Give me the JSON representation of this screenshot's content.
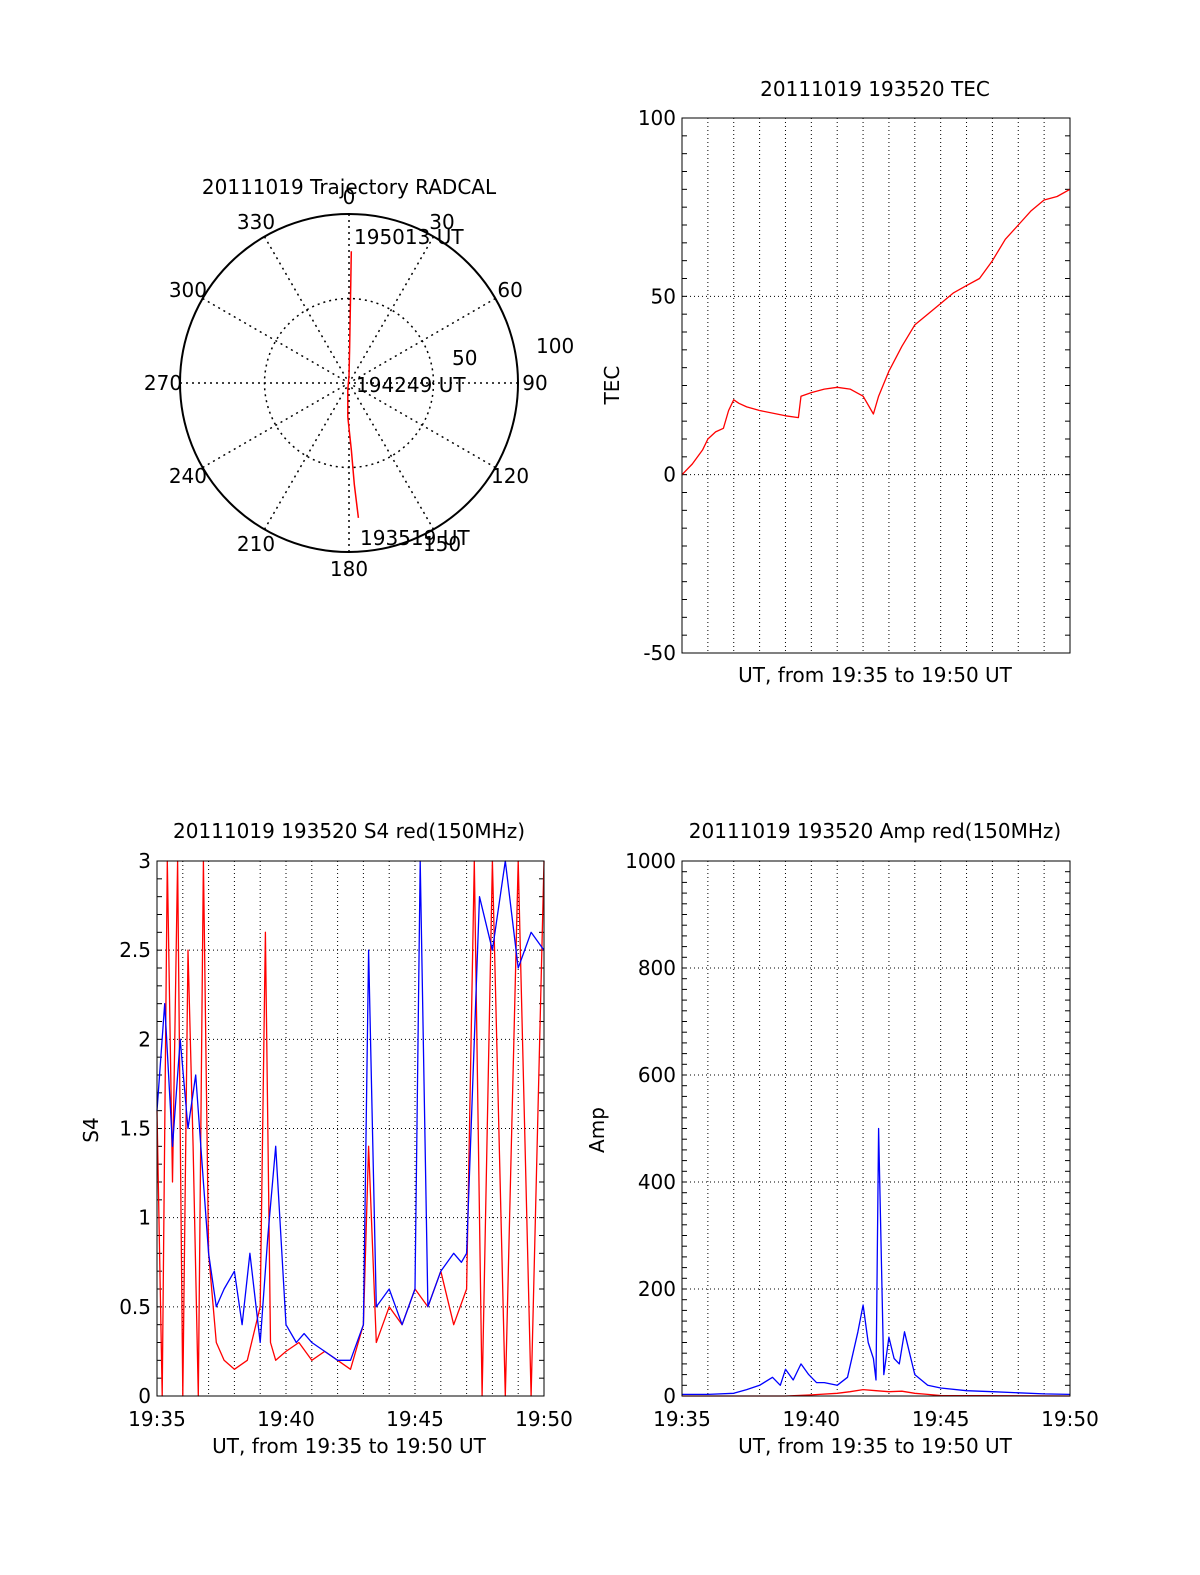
{
  "chart_data": [
    {
      "type": "polar",
      "title": "20111019 Trajectory RADCAL",
      "angle_labels": [
        "0",
        "30",
        "60",
        "90",
        "120",
        "150",
        "180",
        "210",
        "240",
        "270",
        "300",
        "330"
      ],
      "radius_labels": [
        "50",
        "100"
      ],
      "radius_range": [
        0,
        100
      ],
      "start_label": "193519 UT",
      "mid_label": "194249 UT",
      "end_label": "195013 UT",
      "series": [
        {
          "name": "trajectory",
          "color": "#ff0000",
          "points": [
            [
              176,
              80
            ],
            [
              177,
              60
            ],
            [
              178,
              40
            ],
            [
              182,
              20
            ],
            [
              190,
              4
            ],
            [
              0,
              4
            ],
            [
              1,
              20
            ],
            [
              1,
              40
            ],
            [
              1,
              60
            ],
            [
              1,
              78
            ]
          ]
        }
      ]
    },
    {
      "type": "line",
      "title": "20111019 193520 TEC",
      "xlabel": "UT, from 19:35 to 19:50 UT",
      "ylabel": "TEC",
      "xlim": [
        0,
        15
      ],
      "ylim": [
        -50,
        100
      ],
      "yticks": [
        "100",
        "50",
        "0",
        "-50"
      ],
      "grid": true,
      "series": [
        {
          "name": "TEC",
          "color": "#ff0000",
          "x": [
            0,
            0.4,
            0.8,
            1.0,
            1.3,
            1.6,
            1.8,
            2.0,
            2.2,
            2.5,
            3.0,
            4.0,
            4.5,
            4.6,
            5.0,
            5.5,
            6.0,
            6.5,
            7.0,
            7.4,
            7.6,
            8.0,
            8.5,
            9.0,
            9.5,
            10.0,
            10.5,
            11.0,
            11.5,
            12.0,
            12.5,
            13.0,
            13.5,
            14.0,
            14.5,
            15.0
          ],
          "y": [
            0,
            3,
            7,
            10,
            12,
            13,
            18,
            21,
            20,
            19,
            18,
            16.5,
            16,
            22,
            23,
            24,
            24.5,
            24,
            22,
            17,
            22,
            29,
            36,
            42,
            45,
            48,
            51,
            53,
            55,
            60,
            66,
            70,
            74,
            77,
            78,
            80
          ]
        }
      ]
    },
    {
      "type": "line",
      "title": "20111019 193520 S4 red(150MHz)",
      "xlabel": "UT, from 19:35 to 19:50 UT",
      "ylabel": "S4",
      "xlim": [
        0,
        15
      ],
      "ylim": [
        0,
        3
      ],
      "xticks": [
        "19:35",
        "19:40",
        "19:45",
        "19:50"
      ],
      "yticks": [
        "3",
        "2.5",
        "2",
        "1.5",
        "1",
        "0.5",
        "0"
      ],
      "grid": true,
      "series": [
        {
          "name": "red",
          "color": "#ff0000",
          "x": [
            0,
            0.2,
            0.4,
            0.6,
            0.8,
            1.0,
            1.2,
            1.4,
            1.6,
            1.8,
            2.0,
            2.3,
            2.6,
            3.0,
            3.5,
            4.0,
            4.2,
            4.4,
            4.6,
            5.0,
            5.5,
            6.0,
            6.5,
            7.0,
            7.5,
            8.0,
            8.2,
            8.5,
            9.0,
            9.5,
            10.0,
            10.5,
            11.0,
            11.5,
            12.0,
            12.3,
            12.6,
            13.0,
            13.5,
            14.0,
            14.5,
            15.0
          ],
          "y": [
            1.6,
            0,
            3,
            1.2,
            3,
            0,
            2.5,
            1.4,
            0,
            3,
            0.8,
            0.3,
            0.2,
            0.15,
            0.2,
            0.5,
            2.6,
            0.3,
            0.2,
            0.25,
            0.3,
            0.2,
            0.25,
            0.2,
            0.15,
            0.4,
            1.4,
            0.3,
            0.5,
            0.4,
            0.6,
            0.5,
            0.7,
            0.4,
            0.6,
            3,
            0,
            3,
            0,
            3,
            0,
            3
          ]
        },
        {
          "name": "blue",
          "color": "#0000ff",
          "x": [
            0,
            0.3,
            0.6,
            0.9,
            1.2,
            1.5,
            1.8,
            2.0,
            2.3,
            2.6,
            3.0,
            3.3,
            3.6,
            4.0,
            4.3,
            4.6,
            5.0,
            5.4,
            5.7,
            6.0,
            6.5,
            7.0,
            7.5,
            8.0,
            8.2,
            8.5,
            9.0,
            9.5,
            10.0,
            10.2,
            10.5,
            11.0,
            11.5,
            11.8,
            12.0,
            12.5,
            13.0,
            13.5,
            14.0,
            14.5,
            15.0
          ],
          "y": [
            1.6,
            2.2,
            1.4,
            2.0,
            1.5,
            1.8,
            1.2,
            0.8,
            0.5,
            0.6,
            0.7,
            0.4,
            0.8,
            0.3,
            0.9,
            1.4,
            0.4,
            0.3,
            0.35,
            0.3,
            0.25,
            0.2,
            0.2,
            0.4,
            2.5,
            0.5,
            0.6,
            0.4,
            0.6,
            3,
            0.5,
            0.7,
            0.8,
            0.75,
            0.8,
            2.8,
            2.5,
            3,
            2.4,
            2.6,
            2.5
          ]
        }
      ]
    },
    {
      "type": "line",
      "title": "20111019 193520 Amp red(150MHz)",
      "xlabel": "UT, from 19:35 to 19:50 UT",
      "ylabel": "Amp",
      "xlim": [
        0,
        15
      ],
      "ylim": [
        0,
        1000
      ],
      "xticks": [
        "19:35",
        "19:40",
        "19:45",
        "19:50"
      ],
      "yticks": [
        "1000",
        "800",
        "600",
        "400",
        "200",
        "0"
      ],
      "grid": true,
      "series": [
        {
          "name": "blue",
          "color": "#0000ff",
          "x": [
            0,
            1,
            2,
            2.5,
            3,
            3.5,
            3.8,
            4.0,
            4.3,
            4.6,
            4.9,
            5.2,
            5.5,
            6.0,
            6.4,
            6.8,
            7.0,
            7.2,
            7.4,
            7.5,
            7.6,
            7.8,
            8.0,
            8.2,
            8.4,
            8.6,
            8.8,
            9.0,
            9.5,
            10,
            11,
            12,
            13,
            14,
            15
          ],
          "y": [
            3,
            3,
            5,
            12,
            20,
            35,
            20,
            50,
            30,
            60,
            40,
            25,
            25,
            20,
            35,
            120,
            170,
            100,
            70,
            30,
            500,
            40,
            110,
            70,
            60,
            120,
            80,
            40,
            20,
            15,
            10,
            8,
            6,
            4,
            3
          ]
        },
        {
          "name": "red",
          "color": "#ff0000",
          "x": [
            0,
            4,
            5,
            6,
            6.5,
            7,
            7.5,
            8,
            8.5,
            9,
            9.5,
            10,
            15
          ],
          "y": [
            0,
            0,
            2,
            5,
            8,
            12,
            10,
            8,
            9,
            5,
            3,
            1,
            0
          ]
        }
      ]
    }
  ]
}
